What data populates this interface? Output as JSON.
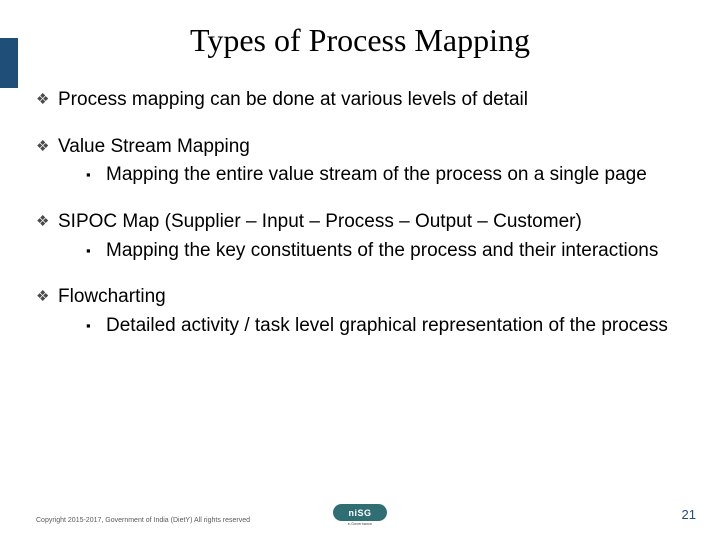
{
  "title": "Types of Process Mapping",
  "accent_color": "#1f4e79",
  "bullets": [
    {
      "text": "Process mapping can be done at various levels of detail",
      "children": []
    },
    {
      "text": "Value Stream Mapping",
      "children": [
        {
          "text": "Mapping the entire value stream of the process on a single page"
        }
      ]
    },
    {
      "text": "SIPOC Map (Supplier – Input – Process – Output – Customer)",
      "justify": true,
      "children": [
        {
          "text": "Mapping the key constituents of the process and their interactions",
          "justify": true
        }
      ]
    },
    {
      "text": "Flowcharting",
      "children": [
        {
          "text": "Detailed activity / task level graphical representation of the process"
        }
      ]
    }
  ],
  "footer": {
    "copyright": "Copyright 2015-2017, Government of India (DietY) All rights reserved",
    "page_number": "21",
    "logo_text": "niSG",
    "logo_sub": "e-Governance"
  },
  "glyphs": {
    "diamond": "❖",
    "square": "▪"
  }
}
